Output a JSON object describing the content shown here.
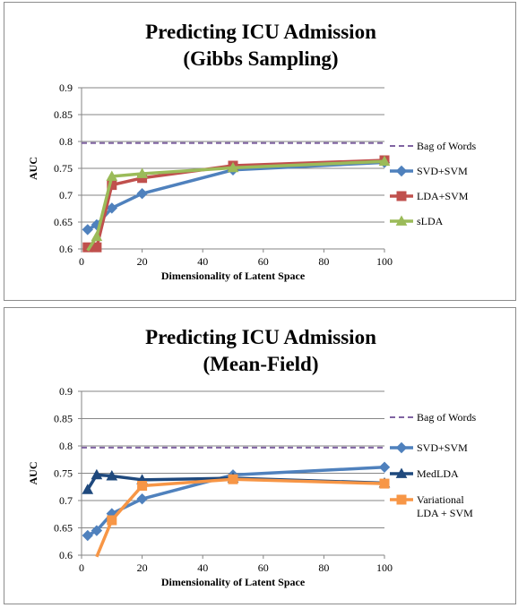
{
  "chart_data": [
    {
      "type": "line",
      "title": "Predicting ICU Admission",
      "subtitle": "(Gibbs Sampling)",
      "xlabel": "Dimensionality of Latent Space",
      "ylabel": "AUC",
      "xlim": [
        0,
        100
      ],
      "ylim": [
        0.6,
        0.9
      ],
      "x_ticks": [
        "0",
        "20",
        "40",
        "60",
        "80",
        "100"
      ],
      "y_ticks": [
        "0.6",
        "0.65",
        "0.7",
        "0.75",
        "0.8",
        "0.85",
        "0.9"
      ],
      "grid": "horizontal",
      "legend_position": "right",
      "series": [
        {
          "name": "Bag of Words",
          "style": "dashed",
          "marker": "none",
          "color": "#8064A2",
          "points": [
            [
              0,
              0.797
            ],
            [
              100,
              0.797
            ]
          ]
        },
        {
          "name": "SVD+SVM",
          "style": "solid",
          "marker": "diamond",
          "color": "#4F81BD",
          "points": [
            [
              2,
              0.636
            ],
            [
              5,
              0.645
            ],
            [
              10,
              0.676
            ],
            [
              20,
              0.703
            ],
            [
              50,
              0.747
            ],
            [
              100,
              0.761
            ]
          ]
        },
        {
          "name": "LDA+SVM",
          "style": "solid",
          "marker": "square",
          "color": "#C0504D",
          "points": [
            [
              2,
              0.603
            ],
            [
              5,
              0.603
            ],
            [
              10,
              0.719
            ],
            [
              20,
              0.732
            ],
            [
              50,
              0.755
            ],
            [
              100,
              0.765
            ]
          ]
        },
        {
          "name": "sLDA",
          "style": "solid",
          "marker": "triangle",
          "color": "#9BBB59",
          "points": [
            [
              2,
              0.596
            ],
            [
              5,
              0.623
            ],
            [
              10,
              0.735
            ],
            [
              20,
              0.74
            ],
            [
              50,
              0.751
            ],
            [
              100,
              0.763
            ]
          ]
        }
      ]
    },
    {
      "type": "line",
      "title": "Predicting ICU Admission",
      "subtitle": "(Mean-Field)",
      "xlabel": "Dimensionality of Latent Space",
      "ylabel": "AUC",
      "xlim": [
        0,
        100
      ],
      "ylim": [
        0.6,
        0.9
      ],
      "x_ticks": [
        "0",
        "20",
        "40",
        "60",
        "80",
        "100"
      ],
      "y_ticks": [
        "0.6",
        "0.65",
        "0.7",
        "0.75",
        "0.8",
        "0.85",
        "0.9"
      ],
      "grid": "horizontal",
      "legend_position": "right",
      "series": [
        {
          "name": "Bag of Words",
          "style": "dashed",
          "marker": "none",
          "color": "#8064A2",
          "points": [
            [
              0,
              0.797
            ],
            [
              100,
              0.797
            ]
          ]
        },
        {
          "name": "SVD+SVM",
          "style": "solid",
          "marker": "diamond",
          "color": "#4F81BD",
          "points": [
            [
              2,
              0.636
            ],
            [
              5,
              0.645
            ],
            [
              10,
              0.676
            ],
            [
              20,
              0.703
            ],
            [
              50,
              0.747
            ],
            [
              100,
              0.761
            ]
          ]
        },
        {
          "name": "MedLDA",
          "style": "solid",
          "marker": "triangle",
          "color": "#1F497D",
          "points": [
            [
              2,
              0.72
            ],
            [
              5,
              0.747
            ],
            [
              10,
              0.745
            ],
            [
              20,
              0.738
            ],
            [
              50,
              0.741
            ],
            [
              100,
              0.732
            ]
          ]
        },
        {
          "name": "Variational LDA + SVM",
          "name_lines": [
            "Variational",
            "LDA + SVM"
          ],
          "style": "solid",
          "marker": "square",
          "color": "#F79646",
          "points": [
            [
              5,
              0.58
            ],
            [
              10,
              0.664
            ],
            [
              20,
              0.727
            ],
            [
              50,
              0.739
            ],
            [
              100,
              0.731
            ]
          ]
        }
      ]
    }
  ]
}
